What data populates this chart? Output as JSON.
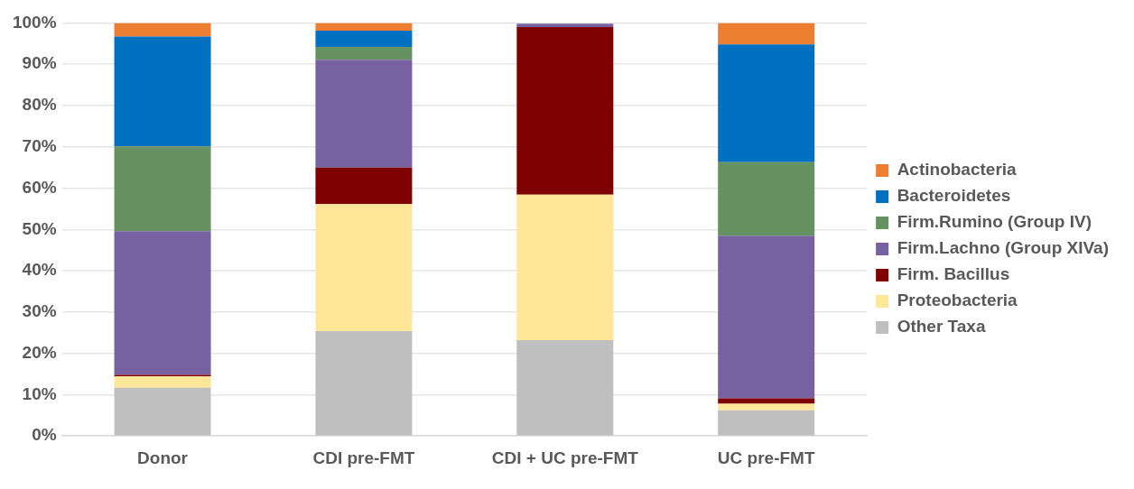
{
  "chart_data": {
    "type": "bar",
    "stacked": true,
    "categories": [
      "Donor",
      "CDI pre-FMT",
      "CDI + UC pre-FMT",
      "UC pre-FMT"
    ],
    "series": [
      {
        "name": "Other Taxa",
        "color": "#bfbfbf",
        "values": [
          11.7,
          25.4,
          23.2,
          6.2
        ]
      },
      {
        "name": "Proteobacteria",
        "color": "#ffe699",
        "values": [
          2.7,
          30.7,
          35.2,
          1.6
        ]
      },
      {
        "name": "Firm. Bacillus",
        "color": "#7f0000",
        "values": [
          0.4,
          8.9,
          40.6,
          1.3
        ]
      },
      {
        "name": "Firm.Lachno (Group XIVa)",
        "color": "#7761a0",
        "values": [
          34.8,
          26.1,
          0.8,
          39.4
        ]
      },
      {
        "name": "Firm.Rumino (Group IV)",
        "color": "#659260",
        "values": [
          20.5,
          3.1,
          0,
          17.8
        ]
      },
      {
        "name": "Bacteroidetes",
        "color": "#0070c0",
        "values": [
          26.6,
          3.9,
          0,
          28.5
        ]
      },
      {
        "name": "Actinobacteria",
        "color": "#ed7d31",
        "values": [
          3.3,
          1.9,
          null,
          5.2
        ]
      }
    ],
    "ylim": [
      0,
      100
    ],
    "yticks": [
      {
        "value": 0,
        "label": "0%"
      },
      {
        "value": 10,
        "label": "10%"
      },
      {
        "value": 20,
        "label": "20%"
      },
      {
        "value": 30,
        "label": "30%"
      },
      {
        "value": 40,
        "label": "40%"
      },
      {
        "value": 50,
        "label": "50%"
      },
      {
        "value": 60,
        "label": "60%"
      },
      {
        "value": 70,
        "label": "70%"
      },
      {
        "value": 80,
        "label": "80%"
      },
      {
        "value": 90,
        "label": "90%"
      },
      {
        "value": 100,
        "label": "100%"
      }
    ],
    "grid": "y",
    "legend": "right"
  }
}
